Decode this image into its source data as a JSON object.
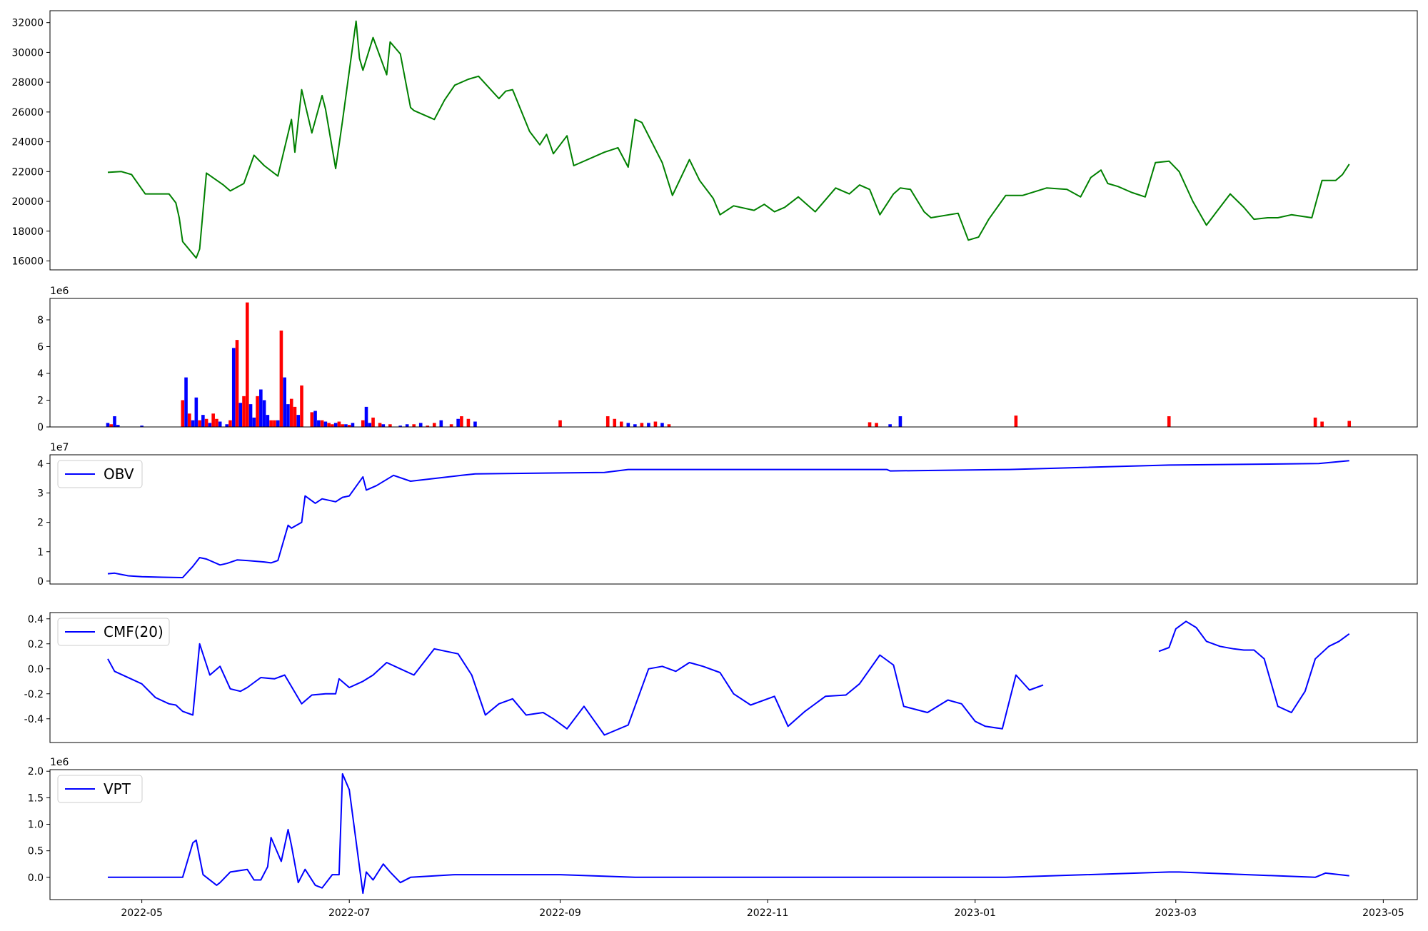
{
  "chart_data": [
    {
      "name": "price",
      "type": "line",
      "color": "#008000",
      "yticks": [
        16000,
        18000,
        20000,
        22000,
        24000,
        26000,
        28000,
        30000,
        32000
      ],
      "ylim": [
        15400,
        32800
      ],
      "dates": [
        "2022-04-21",
        "2022-04-25",
        "2022-04-28",
        "2022-05-02",
        "2022-05-09",
        "2022-05-11",
        "2022-05-12",
        "2022-05-13",
        "2022-05-17",
        "2022-05-18",
        "2022-05-20",
        "2022-05-25",
        "2022-05-27",
        "2022-05-31",
        "2022-06-03",
        "2022-06-06",
        "2022-06-10",
        "2022-06-14",
        "2022-06-15",
        "2022-06-17",
        "2022-06-20",
        "2022-06-23",
        "2022-06-24",
        "2022-06-27",
        "2022-06-28",
        "2022-06-29",
        "2022-07-03",
        "2022-07-04",
        "2022-07-05",
        "2022-07-08",
        "2022-07-12",
        "2022-07-13",
        "2022-07-16",
        "2022-07-19",
        "2022-07-20",
        "2022-07-26",
        "2022-07-29",
        "2022-08-01",
        "2022-08-05",
        "2022-08-08",
        "2022-08-14",
        "2022-08-16",
        "2022-08-18",
        "2022-08-23",
        "2022-08-26",
        "2022-08-28",
        "2022-08-30",
        "2022-09-03",
        "2022-09-05",
        "2022-09-14",
        "2022-09-18",
        "2022-09-21",
        "2022-09-23",
        "2022-09-25",
        "2022-10-01",
        "2022-10-04",
        "2022-10-09",
        "2022-10-12",
        "2022-10-16",
        "2022-10-18",
        "2022-10-22",
        "2022-10-28",
        "2022-10-31",
        "2022-11-03",
        "2022-11-06",
        "2022-11-10",
        "2022-11-15",
        "2022-11-21",
        "2022-11-25",
        "2022-11-28",
        "2022-12-01",
        "2022-12-04",
        "2022-12-08",
        "2022-12-10",
        "2022-12-13",
        "2022-12-17",
        "2022-12-19",
        "2022-12-27",
        "2022-12-30",
        "2023-01-02",
        "2023-01-05",
        "2023-01-10",
        "2023-01-15",
        "2023-01-22",
        "2023-01-28",
        "2023-02-01",
        "2023-02-04",
        "2023-02-07",
        "2023-02-09",
        "2023-02-12",
        "2023-02-16",
        "2023-02-20",
        "2023-02-23",
        "2023-02-27",
        "2023-03-02",
        "2023-03-06",
        "2023-03-10",
        "2023-03-13",
        "2023-03-17",
        "2023-03-21",
        "2023-03-24",
        "2023-03-28",
        "2023-03-31",
        "2023-04-04",
        "2023-04-10",
        "2023-04-13",
        "2023-04-17",
        "2023-04-19",
        "2023-04-21"
      ],
      "values": [
        21950,
        22000,
        21800,
        20500,
        20500,
        19900,
        18900,
        17300,
        16200,
        16800,
        21900,
        21100,
        20700,
        21200,
        23100,
        22400,
        21700,
        25500,
        23300,
        27500,
        24600,
        27100,
        26200,
        22200,
        23800,
        25400,
        32100,
        29600,
        28800,
        31000,
        28500,
        30700,
        29900,
        26300,
        26100,
        25500,
        26800,
        27800,
        28200,
        28400,
        26900,
        27400,
        27500,
        24700,
        23800,
        24500,
        23200,
        24400,
        22400,
        23300,
        23600,
        22300,
        25500,
        25300,
        22600,
        20400,
        22800,
        21400,
        20200,
        19100,
        19700,
        19400,
        19800,
        19300,
        19600,
        20300,
        19300,
        20900,
        20500,
        21100,
        20800,
        19100,
        20500,
        20900,
        20800,
        19300,
        18900,
        19200,
        17400,
        17600,
        18800,
        20400,
        20400,
        20900,
        20800,
        20300,
        21600,
        22100,
        21200,
        21000,
        20600,
        20300,
        22600,
        22700,
        22000,
        20000,
        18400,
        19300,
        20500,
        19600,
        18800,
        18900,
        18900,
        19100,
        18900,
        21400,
        21400,
        21800,
        22500
      ]
    },
    {
      "name": "volume",
      "type": "bar",
      "exponent_label": "1e6",
      "colors": {
        "up": "#ff0000",
        "down": "#0000ff"
      },
      "yticks": [
        0,
        2,
        4,
        6,
        8
      ],
      "ylim": [
        0,
        9.6
      ],
      "dates": [
        "2022-04-21",
        "2022-04-22",
        "2022-04-23",
        "2022-04-24",
        "2022-05-01",
        "2022-05-13",
        "2022-05-14",
        "2022-05-15",
        "2022-05-16",
        "2022-05-17",
        "2022-05-18",
        "2022-05-19",
        "2022-05-20",
        "2022-05-21",
        "2022-05-22",
        "2022-05-23",
        "2022-05-24",
        "2022-05-26",
        "2022-05-27",
        "2022-05-28",
        "2022-05-29",
        "2022-05-30",
        "2022-05-31",
        "2022-06-01",
        "2022-06-02",
        "2022-06-03",
        "2022-06-04",
        "2022-06-05",
        "2022-06-06",
        "2022-06-07",
        "2022-06-08",
        "2022-06-09",
        "2022-06-10",
        "2022-06-11",
        "2022-06-12",
        "2022-06-13",
        "2022-06-14",
        "2022-06-15",
        "2022-06-16",
        "2022-06-17",
        "2022-06-20",
        "2022-06-21",
        "2022-06-22",
        "2022-06-23",
        "2022-06-24",
        "2022-06-25",
        "2022-06-26",
        "2022-06-27",
        "2022-06-28",
        "2022-06-29",
        "2022-06-30",
        "2022-07-01",
        "2022-07-02",
        "2022-07-05",
        "2022-07-06",
        "2022-07-07",
        "2022-07-08",
        "2022-07-10",
        "2022-07-11",
        "2022-07-13",
        "2022-07-16",
        "2022-07-18",
        "2022-07-20",
        "2022-07-22",
        "2022-07-24",
        "2022-07-26",
        "2022-07-28",
        "2022-07-31",
        "2022-08-02",
        "2022-08-03",
        "2022-08-05",
        "2022-08-07",
        "2022-09-01",
        "2022-09-15",
        "2022-09-17",
        "2022-09-19",
        "2022-09-21",
        "2022-09-23",
        "2022-09-25",
        "2022-09-27",
        "2022-09-29",
        "2022-10-01",
        "2022-10-03",
        "2022-12-01",
        "2022-12-03",
        "2022-12-07",
        "2022-12-10",
        "2023-01-13",
        "2023-02-27",
        "2023-04-11",
        "2023-04-13",
        "2023-04-21"
      ],
      "values": [
        0.3,
        0.2,
        0.8,
        0.15,
        0.1,
        2.0,
        3.7,
        1.0,
        0.5,
        2.2,
        0.5,
        0.9,
        0.6,
        0.3,
        1.0,
        0.6,
        0.4,
        0.2,
        0.5,
        5.9,
        6.5,
        1.8,
        2.3,
        9.3,
        1.7,
        0.7,
        2.3,
        2.8,
        2.0,
        0.9,
        0.5,
        0.5,
        0.5,
        7.2,
        3.7,
        1.7,
        2.1,
        1.5,
        0.9,
        3.1,
        1.1,
        1.2,
        0.5,
        0.5,
        0.4,
        0.3,
        0.2,
        0.3,
        0.4,
        0.2,
        0.2,
        0.15,
        0.3,
        0.5,
        1.5,
        0.3,
        0.7,
        0.3,
        0.2,
        0.2,
        0.1,
        0.2,
        0.2,
        0.3,
        0.1,
        0.3,
        0.5,
        0.2,
        0.6,
        0.8,
        0.6,
        0.4,
        0.5,
        0.8,
        0.6,
        0.4,
        0.3,
        0.2,
        0.3,
        0.3,
        0.4,
        0.3,
        0.2,
        0.35,
        0.3,
        0.2,
        0.8,
        0.85,
        0.8,
        0.7,
        0.4,
        0.45
      ],
      "directions": [
        "down",
        "up",
        "down",
        "down",
        "down",
        "up",
        "down",
        "up",
        "down",
        "down",
        "up",
        "down",
        "up",
        "down",
        "up",
        "up",
        "down",
        "down",
        "up",
        "down",
        "up",
        "down",
        "up",
        "up",
        "down",
        "down",
        "up",
        "down",
        "down",
        "down",
        "up",
        "up",
        "down",
        "up",
        "down",
        "down",
        "up",
        "up",
        "down",
        "up",
        "up",
        "down",
        "down",
        "up",
        "down",
        "up",
        "up",
        "down",
        "up",
        "up",
        "down",
        "up",
        "down",
        "up",
        "down",
        "down",
        "up",
        "up",
        "down",
        "up",
        "down",
        "down",
        "up",
        "down",
        "up",
        "up",
        "down",
        "up",
        "down",
        "up",
        "up",
        "down",
        "up",
        "up",
        "up",
        "up",
        "down",
        "down",
        "up",
        "down",
        "up",
        "down",
        "up",
        "up",
        "up",
        "down",
        "down",
        "up",
        "up",
        "up",
        "up",
        "up"
      ]
    },
    {
      "name": "obv",
      "type": "line",
      "color": "#0000ff",
      "exponent_label": "1e7",
      "legend": "OBV",
      "yticks": [
        0,
        1,
        2,
        3,
        4
      ],
      "ylim": [
        -0.1,
        4.3
      ],
      "dates": [
        "2022-04-21",
        "2022-04-23",
        "2022-04-27",
        "2022-05-01",
        "2022-05-07",
        "2022-05-13",
        "2022-05-16",
        "2022-05-18",
        "2022-05-20",
        "2022-05-24",
        "2022-05-26",
        "2022-05-29",
        "2022-06-01",
        "2022-06-06",
        "2022-06-08",
        "2022-06-10",
        "2022-06-13",
        "2022-06-14",
        "2022-06-17",
        "2022-06-18",
        "2022-06-21",
        "2022-06-23",
        "2022-06-27",
        "2022-06-29",
        "2022-07-01",
        "2022-07-05",
        "2022-07-06",
        "2022-07-09",
        "2022-07-14",
        "2022-07-19",
        "2022-08-03",
        "2022-08-07",
        "2022-09-14",
        "2022-09-21",
        "2022-12-06",
        "2022-12-07",
        "2023-01-11",
        "2023-02-27",
        "2023-04-12",
        "2023-04-21"
      ],
      "values": [
        0.25,
        0.27,
        0.18,
        0.15,
        0.13,
        0.12,
        0.5,
        0.8,
        0.75,
        0.55,
        0.6,
        0.72,
        0.7,
        0.65,
        0.62,
        0.7,
        1.9,
        1.8,
        2.0,
        2.9,
        2.65,
        2.8,
        2.7,
        2.85,
        2.9,
        3.55,
        3.1,
        3.25,
        3.6,
        3.4,
        3.6,
        3.65,
        3.7,
        3.8,
        3.8,
        3.75,
        3.8,
        3.95,
        4.0,
        4.1
      ]
    },
    {
      "name": "cmf",
      "type": "line",
      "color": "#0000ff",
      "legend": "CMF(20)",
      "yticks": [
        -0.4,
        -0.2,
        0.0,
        0.2,
        0.4
      ],
      "ylim": [
        -0.59,
        0.45
      ],
      "segments": [
        {
          "dates": [
            "2022-04-21",
            "2022-04-23",
            "2022-05-01",
            "2022-05-05",
            "2022-05-09",
            "2022-05-11",
            "2022-05-13",
            "2022-05-16",
            "2022-05-18",
            "2022-05-21",
            "2022-05-24",
            "2022-05-27",
            "2022-05-30",
            "2022-06-01",
            "2022-06-05",
            "2022-06-09",
            "2022-06-12",
            "2022-06-17",
            "2022-06-20",
            "2022-06-24",
            "2022-06-27",
            "2022-06-28",
            "2022-07-01",
            "2022-07-05",
            "2022-07-08",
            "2022-07-12",
            "2022-07-16",
            "2022-07-20",
            "2022-07-26",
            "2022-08-02",
            "2022-08-06",
            "2022-08-10",
            "2022-08-14",
            "2022-08-18",
            "2022-08-22",
            "2022-08-27",
            "2022-08-30",
            "2022-09-03",
            "2022-09-08",
            "2022-09-14",
            "2022-09-21",
            "2022-09-27",
            "2022-10-01",
            "2022-10-05",
            "2022-10-09",
            "2022-10-13",
            "2022-10-18",
            "2022-10-22",
            "2022-10-27",
            "2022-11-03",
            "2022-11-07",
            "2022-11-12",
            "2022-11-18",
            "2022-11-24",
            "2022-11-28",
            "2022-12-04",
            "2022-12-08",
            "2022-12-11",
            "2022-12-18",
            "2022-12-24",
            "2022-12-28",
            "2023-01-01",
            "2023-01-04",
            "2023-01-09",
            "2023-01-13",
            "2023-01-17",
            "2023-01-21"
          ],
          "values": [
            0.08,
            -0.02,
            -0.12,
            -0.23,
            -0.28,
            -0.29,
            -0.34,
            -0.37,
            0.2,
            -0.05,
            0.02,
            -0.16,
            -0.18,
            -0.15,
            -0.07,
            -0.08,
            -0.05,
            -0.28,
            -0.21,
            -0.2,
            -0.2,
            -0.08,
            -0.15,
            -0.1,
            -0.05,
            0.05,
            0.0,
            -0.05,
            0.16,
            0.12,
            -0.05,
            -0.37,
            -0.28,
            -0.24,
            -0.37,
            -0.35,
            -0.4,
            -0.48,
            -0.3,
            -0.53,
            -0.45,
            0.0,
            0.02,
            -0.02,
            0.05,
            0.02,
            -0.03,
            -0.2,
            -0.29,
            -0.22,
            -0.46,
            -0.34,
            -0.22,
            -0.21,
            -0.12,
            0.11,
            0.03,
            -0.3,
            -0.35,
            -0.25,
            -0.28,
            -0.42,
            -0.46,
            -0.48,
            -0.05,
            -0.17,
            -0.13
          ]
        },
        {
          "dates": [
            "2023-02-24",
            "2023-02-27",
            "2023-03-01",
            "2023-03-04",
            "2023-03-07",
            "2023-03-10",
            "2023-03-14",
            "2023-03-18",
            "2023-03-21",
            "2023-03-24",
            "2023-03-27",
            "2023-03-31",
            "2023-04-04",
            "2023-04-08",
            "2023-04-11",
            "2023-04-15",
            "2023-04-18",
            "2023-04-21"
          ],
          "values": [
            0.14,
            0.17,
            0.32,
            0.38,
            0.33,
            0.22,
            0.18,
            0.16,
            0.15,
            0.15,
            0.08,
            -0.3,
            -0.35,
            -0.18,
            0.08,
            0.18,
            0.22,
            0.28
          ]
        }
      ]
    },
    {
      "name": "vpt",
      "type": "line",
      "color": "#0000ff",
      "exponent_label": "1e6",
      "legend": "VPT",
      "yticks": [
        0.0,
        0.5,
        1.0,
        1.5,
        2.0
      ],
      "ylim": [
        -0.42,
        2.03
      ],
      "xticks": [
        "2022-05",
        "2022-07",
        "2022-09",
        "2022-11",
        "2023-01",
        "2023-03",
        "2023-05"
      ],
      "dates": [
        "2022-04-21",
        "2022-05-13",
        "2022-05-16",
        "2022-05-17",
        "2022-05-19",
        "2022-05-23",
        "2022-05-24",
        "2022-05-27",
        "2022-06-01",
        "2022-06-03",
        "2022-06-05",
        "2022-06-07",
        "2022-06-08",
        "2022-06-11",
        "2022-06-13",
        "2022-06-14",
        "2022-06-16",
        "2022-06-18",
        "2022-06-21",
        "2022-06-23",
        "2022-06-26",
        "2022-06-28",
        "2022-06-29",
        "2022-07-01",
        "2022-07-05",
        "2022-07-06",
        "2022-07-08",
        "2022-07-11",
        "2022-07-13",
        "2022-07-16",
        "2022-07-19",
        "2022-08-01",
        "2022-09-01",
        "2022-09-23",
        "2022-10-01",
        "2023-01-10",
        "2023-02-27",
        "2023-03-02",
        "2023-04-11",
        "2023-04-14",
        "2023-04-21"
      ],
      "values": [
        0.0,
        0.0,
        0.65,
        0.7,
        0.05,
        -0.15,
        -0.1,
        0.1,
        0.15,
        -0.05,
        -0.05,
        0.2,
        0.75,
        0.3,
        0.9,
        0.6,
        -0.1,
        0.15,
        -0.15,
        -0.2,
        0.05,
        0.05,
        1.95,
        1.65,
        -0.3,
        0.1,
        -0.05,
        0.25,
        0.1,
        -0.1,
        0.0,
        0.05,
        0.05,
        0.0,
        0.0,
        0.0,
        0.1,
        0.1,
        0.0,
        0.08,
        0.03
      ]
    }
  ]
}
